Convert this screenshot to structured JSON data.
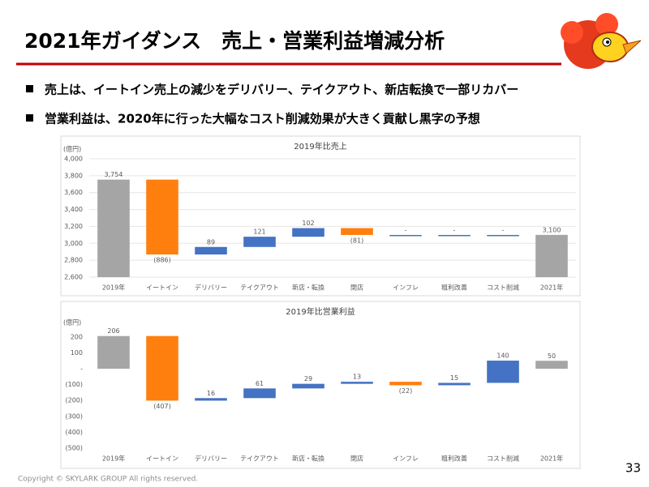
{
  "header": {
    "title": "2021年ガイダンス　売上・営業利益増減分析"
  },
  "bullets": [
    "売上は、イートイン売上の減少をデリバリー、テイクアウト、新店転換で一部リカバー",
    "営業利益は、2020年に行った大幅なコスト削減効果が大きく貢献し黒字の予想"
  ],
  "chart_data": [
    {
      "type": "waterfall",
      "title": "2019年比売上",
      "y_label": "(億円)",
      "categories": [
        "2019年",
        "イートイン",
        "デリバリー",
        "テイクアウト",
        "新店・転換",
        "閉店",
        "インフレ",
        "粗利改善",
        "コスト削減",
        "2021年"
      ],
      "values": [
        3754,
        -886,
        89,
        121,
        102,
        -81,
        0,
        0,
        0,
        3100
      ],
      "value_labels": [
        "3,754",
        "(886)",
        "89",
        "121",
        "102",
        "(81)",
        "-",
        "-",
        "-",
        "3,100"
      ],
      "colors": [
        "#a5a5a5",
        "#ff7f0e",
        "#4472c4",
        "#4472c4",
        "#4472c4",
        "#ff7f0e",
        "#4472c4",
        "#4472c4",
        "#4472c4",
        "#a5a5a5"
      ],
      "ylim": [
        2600,
        4000
      ],
      "yticks": [
        {
          "value": 2600,
          "label": "2,600"
        },
        {
          "value": 2800,
          "label": "2,800"
        },
        {
          "value": 3000,
          "label": "3,000"
        },
        {
          "value": 3200,
          "label": "3,200"
        },
        {
          "value": 3400,
          "label": "3,400"
        },
        {
          "value": 3600,
          "label": "3,600"
        },
        {
          "value": 3800,
          "label": "3,800"
        },
        {
          "value": 4000,
          "label": "4,000"
        }
      ],
      "grid": true
    },
    {
      "type": "waterfall",
      "title": "2019年比営業利益",
      "y_label": "(億円)",
      "categories": [
        "2019年",
        "イートイン",
        "デリバリー",
        "テイクアウト",
        "新店・転換",
        "閉店",
        "インフレ",
        "粗利改善",
        "コスト削減",
        "2021年"
      ],
      "values": [
        206,
        -407,
        16,
        61,
        29,
        13,
        -22,
        15,
        140,
        50
      ],
      "value_labels": [
        "206",
        "(407)",
        "16",
        "61",
        "29",
        "13",
        "(22)",
        "15",
        "140",
        "50"
      ],
      "colors": [
        "#a5a5a5",
        "#ff7f0e",
        "#4472c4",
        "#4472c4",
        "#4472c4",
        "#4472c4",
        "#ff7f0e",
        "#4472c4",
        "#4472c4",
        "#a5a5a5"
      ],
      "ylim": [
        -500,
        230
      ],
      "yticks": [
        200,
        100,
        {
          "value": 0,
          "label": "-"
        },
        {
          "value": -100,
          "label": "(100)"
        },
        {
          "value": -200,
          "label": "(200)"
        },
        {
          "value": -300,
          "label": "(300)"
        },
        {
          "value": -400,
          "label": "(400)"
        },
        {
          "value": -500,
          "label": "(500)"
        }
      ],
      "grid": false
    }
  ],
  "footer": {
    "copyright": "Copyright © SKYLARK GROUP All rights reserved.",
    "page_number": "33"
  }
}
